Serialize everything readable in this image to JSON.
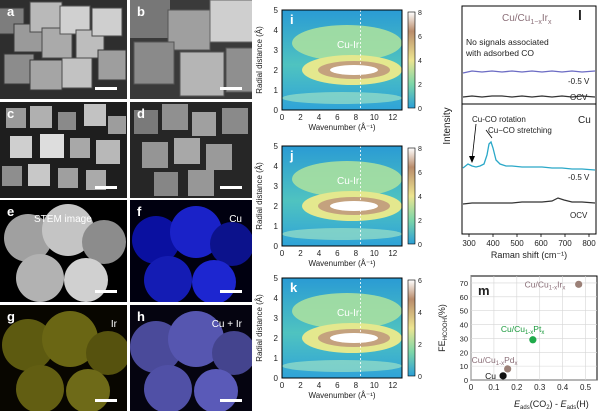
{
  "micro_panels": {
    "a": {
      "label": "a"
    },
    "b": {
      "label": "b"
    },
    "c": {
      "label": "c"
    },
    "d": {
      "label": "d"
    },
    "e": {
      "label": "e",
      "caption": "STEM image"
    },
    "f": {
      "label": "f",
      "caption": "Cu"
    },
    "g": {
      "label": "g",
      "caption": "Ir"
    },
    "h": {
      "label": "h",
      "caption": "Cu + Ir"
    }
  },
  "wavelet_panels": [
    {
      "label": "i",
      "peak_label": "Cu-Ir"
    },
    {
      "label": "j",
      "peak_label": "Cu-Ir"
    },
    {
      "label": "k",
      "peak_label": "Cu-Ir"
    }
  ],
  "wavelet_common": {
    "xlabel": "Wavenumber (Å⁻¹)",
    "ylabel": "Radial distance (Å)",
    "xticks": [
      "0",
      "2",
      "4",
      "6",
      "8",
      "10",
      "12"
    ],
    "yticks": [
      "0",
      "1",
      "2",
      "3",
      "4",
      "5"
    ],
    "colorbar_ticks_ij": [
      "8",
      "6",
      "4",
      "2",
      "0"
    ],
    "colorbar_ticks_k": [
      "6",
      "4",
      "2",
      "0"
    ]
  },
  "raman": {
    "label": "l",
    "title_main": "Cu/Cu",
    "title_sub": "1−x",
    "title_ir": "Ir",
    "title_x": "x",
    "note_line1": "No signals associated",
    "note_line2": "with adsorbed CO",
    "upper_potential": "-0.5 V",
    "upper_ocv": "OCV",
    "lower_title": "Cu",
    "annotation_rotation": "Cu-CO rotation",
    "annotation_stretching": "Cu−CO stretching",
    "lower_potential": "-0.5 V",
    "lower_ocv": "OCV",
    "ylabel": "Intensity",
    "xlabel": "Raman shift (cm⁻¹)",
    "xticks": [
      "300",
      "400",
      "500",
      "600",
      "700",
      "800"
    ]
  },
  "scatter": {
    "label": "m",
    "ylabel_main": "FE",
    "ylabel_sub": "HCOOH",
    "ylabel_unit": "(%)",
    "xlabel": "E",
    "xticks": [
      "0",
      "0.1",
      "0.2",
      "0.3",
      "0.4",
      "0.5"
    ],
    "yticks": [
      "0",
      "10",
      "20",
      "30",
      "40",
      "50",
      "60",
      "70"
    ]
  },
  "chart_data": {
    "type": "scatter",
    "title": "",
    "xlabel": "Eads(CO2) - Eads(H)",
    "ylabel": "FE HCOOH (%)",
    "xlim": [
      0,
      0.55
    ],
    "ylim": [
      0,
      75
    ],
    "grid": true,
    "points": [
      {
        "name": "Cu/Cu1-xIrx",
        "x": 0.47,
        "y": 69,
        "color": "#9b8077"
      },
      {
        "name": "Cu/Cu1-xPtx",
        "x": 0.27,
        "y": 29,
        "color": "#1faa4a"
      },
      {
        "name": "Cu/Cu1-xPdx",
        "x": 0.16,
        "y": 8,
        "color": "#9b8077"
      },
      {
        "name": "Cu",
        "x": 0.14,
        "y": 3,
        "color": "#111111"
      }
    ],
    "labels": [
      {
        "base": "Cu/Cu",
        "sub": "1-x",
        "el": "Ir",
        "x_sub": "x",
        "color": "#8b6f78"
      },
      {
        "base": "Cu/Cu",
        "sub": "1-x",
        "el": "Pt",
        "x_sub": "x",
        "color": "#1a9a3c"
      },
      {
        "base": "Cu/Cu",
        "sub": "1-x",
        "el": "Pd",
        "x_sub": "x",
        "color": "#8b6f78"
      },
      {
        "base": "Cu",
        "sub": "",
        "el": "",
        "x_sub": "",
        "color": "#111111"
      }
    ]
  }
}
